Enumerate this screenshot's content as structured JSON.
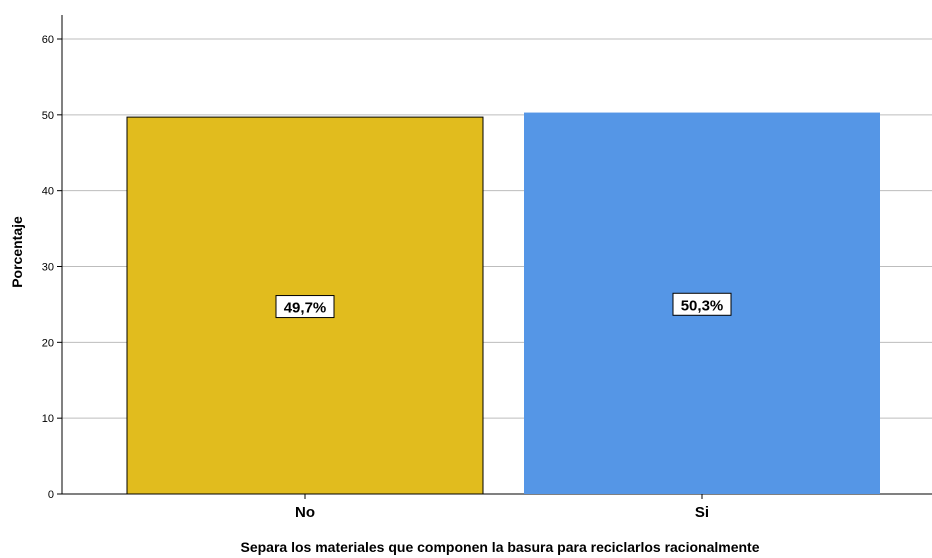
{
  "chart_data": {
    "type": "bar",
    "categories": [
      "No",
      "Si"
    ],
    "values": [
      49.7,
      50.3
    ],
    "data_labels": [
      "49,7%",
      "50,3%"
    ],
    "colors": [
      "#E1BC1E",
      "#5596E6"
    ],
    "title": "",
    "xlabel": "Separa los materiales que componen la basura para reciclarlos racionalmente",
    "ylabel": "Porcentaje",
    "ylim": [
      0,
      60
    ],
    "yticks": [
      0,
      10,
      20,
      30,
      40,
      50,
      60
    ],
    "ytick_labels": [
      "0",
      "10",
      "20",
      "30",
      "40",
      "50",
      "60"
    ],
    "grid": true,
    "legend": "none"
  }
}
